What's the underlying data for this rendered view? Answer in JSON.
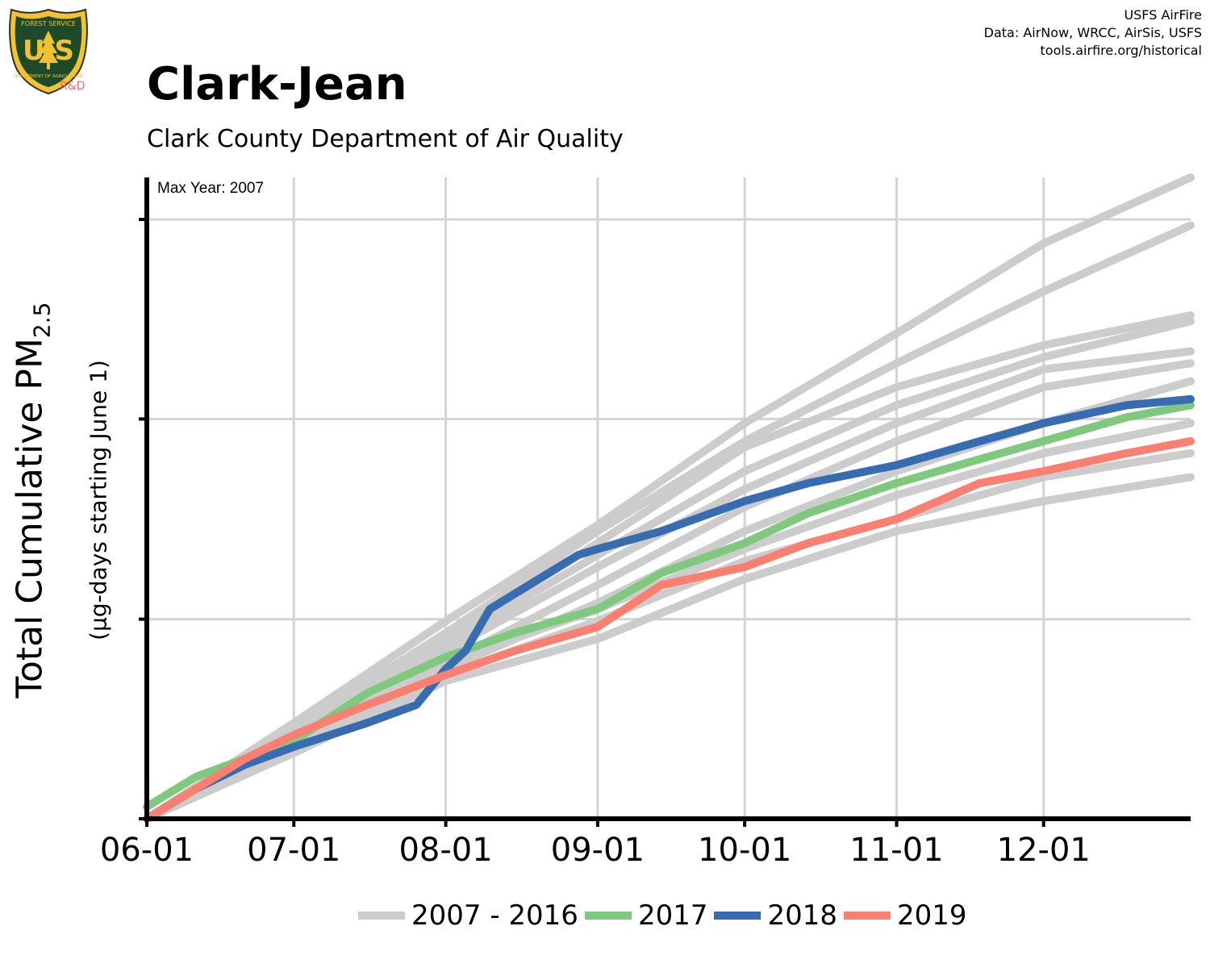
{
  "header": {
    "title": "Clark-Jean",
    "subtitle": "Clark County Department of Air Quality",
    "credits": [
      "USFS AirFire",
      "Data: AirNow, WRCC, AirSis, USFS",
      "tools.airfire.org/historical"
    ]
  },
  "logo": {
    "icon": "usfs-shield-icon",
    "top_text": "FOREST SERVICE",
    "letters": "U S",
    "bottom_text": "DEPARTMENT OF AGRICULTURE",
    "badge": "R&D"
  },
  "chart_data": {
    "type": "line",
    "title": "Clark-Jean",
    "subtitle": "Clark County Department of Air Quality",
    "ylabel": "Total Cumulative PM",
    "ylabel_sub": "2.5",
    "ylabel_units": "(µg-days starting June 1)",
    "annotation": "Max Year: 2007",
    "x_tick_labels": [
      "06-01",
      "07-01",
      "08-01",
      "09-01",
      "10-01",
      "11-01",
      "12-01"
    ],
    "x_tick_days": [
      0,
      30,
      61,
      92,
      122,
      153,
      183
    ],
    "xlim": [
      0,
      213
    ],
    "ylim": [
      0,
      1.0
    ],
    "y_gridlines": [
      0.333,
      0.667,
      1.0
    ],
    "grid": true,
    "legend_position": "bottom",
    "legend": [
      {
        "label": "2007 - 2016",
        "color": "#cccccc"
      },
      {
        "label": "2017",
        "color": "#7fc97f"
      },
      {
        "label": "2018",
        "color": "#386cb0"
      },
      {
        "label": "2019",
        "color": "#f98070"
      }
    ],
    "series": [
      {
        "name": "2007 - 2016",
        "color": "#cccccc",
        "x": [
          0,
          30,
          61,
          92,
          122,
          153,
          183,
          213
        ],
        "y": [
          0.0,
          0.16,
          0.33,
          0.49,
          0.66,
          0.81,
          0.96,
          1.07
        ]
      },
      {
        "name": "2007 - 2016",
        "color": "#cccccc",
        "x": [
          0,
          30,
          61,
          92,
          122,
          153,
          183,
          213
        ],
        "y": [
          0.0,
          0.15,
          0.31,
          0.48,
          0.63,
          0.76,
          0.88,
          0.99
        ]
      },
      {
        "name": "2007 - 2016",
        "color": "#cccccc",
        "x": [
          0,
          30,
          61,
          92,
          122,
          153,
          183,
          213
        ],
        "y": [
          0.0,
          0.15,
          0.3,
          0.46,
          0.62,
          0.72,
          0.79,
          0.84
        ]
      },
      {
        "name": "2007 - 2016",
        "color": "#cccccc",
        "x": [
          0,
          30,
          61,
          92,
          122,
          153,
          183,
          213
        ],
        "y": [
          0.0,
          0.14,
          0.29,
          0.44,
          0.58,
          0.69,
          0.77,
          0.83
        ]
      },
      {
        "name": "2007 - 2016",
        "color": "#cccccc",
        "x": [
          0,
          30,
          61,
          92,
          122,
          153,
          183,
          213
        ],
        "y": [
          0.0,
          0.14,
          0.28,
          0.42,
          0.55,
          0.66,
          0.75,
          0.78
        ]
      },
      {
        "name": "2007 - 2016",
        "color": "#cccccc",
        "x": [
          0,
          30,
          61,
          92,
          122,
          153,
          183,
          213
        ],
        "y": [
          0.0,
          0.13,
          0.26,
          0.39,
          0.52,
          0.63,
          0.72,
          0.76
        ]
      },
      {
        "name": "2007 - 2016",
        "color": "#cccccc",
        "x": [
          0,
          30,
          61,
          92,
          122,
          153,
          183,
          213
        ],
        "y": [
          0.0,
          0.12,
          0.25,
          0.36,
          0.48,
          0.58,
          0.66,
          0.73
        ]
      },
      {
        "name": "2007 - 2016",
        "color": "#cccccc",
        "x": [
          0,
          30,
          61,
          92,
          122,
          153,
          183,
          213
        ],
        "y": [
          0.0,
          0.13,
          0.26,
          0.35,
          0.45,
          0.54,
          0.61,
          0.66
        ]
      },
      {
        "name": "2007 - 2016",
        "color": "#cccccc",
        "x": [
          0,
          30,
          61,
          92,
          122,
          153,
          183,
          213
        ],
        "y": [
          0.0,
          0.12,
          0.24,
          0.33,
          0.43,
          0.5,
          0.57,
          0.61
        ]
      },
      {
        "name": "2007 - 2016",
        "color": "#cccccc",
        "x": [
          0,
          30,
          61,
          92,
          122,
          153,
          183,
          213
        ],
        "y": [
          0.0,
          0.11,
          0.23,
          0.3,
          0.4,
          0.48,
          0.53,
          0.57
        ]
      },
      {
        "name": "2017",
        "color": "#7fc97f",
        "x": [
          0,
          10,
          20,
          30,
          45,
          61,
          75,
          92,
          105,
          122,
          135,
          153,
          170,
          183,
          200,
          213
        ],
        "y": [
          0.02,
          0.07,
          0.1,
          0.13,
          0.21,
          0.27,
          0.31,
          0.35,
          0.41,
          0.46,
          0.51,
          0.56,
          0.6,
          0.63,
          0.67,
          0.69
        ]
      },
      {
        "name": "2018",
        "color": "#386cb0",
        "x": [
          0,
          10,
          20,
          30,
          45,
          55,
          61,
          65,
          70,
          80,
          88,
          92,
          105,
          122,
          135,
          153,
          170,
          183,
          200,
          213
        ],
        "y": [
          0.0,
          0.05,
          0.09,
          0.12,
          0.16,
          0.19,
          0.25,
          0.28,
          0.35,
          0.4,
          0.44,
          0.45,
          0.48,
          0.53,
          0.56,
          0.59,
          0.63,
          0.66,
          0.69,
          0.7
        ]
      },
      {
        "name": "2019",
        "color": "#f98070",
        "x": [
          0,
          10,
          20,
          30,
          45,
          61,
          75,
          92,
          105,
          122,
          135,
          153,
          170,
          183,
          200,
          213
        ],
        "y": [
          0.0,
          0.05,
          0.1,
          0.14,
          0.19,
          0.24,
          0.28,
          0.32,
          0.39,
          0.42,
          0.46,
          0.5,
          0.56,
          0.58,
          0.61,
          0.63
        ]
      }
    ]
  }
}
